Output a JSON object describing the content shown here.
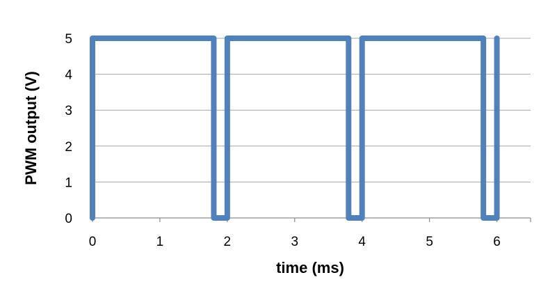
{
  "chart_data": {
    "type": "line",
    "title": "",
    "xlabel": "time (ms)",
    "ylabel": "PWM output (V)",
    "xlim": [
      0,
      6.5
    ],
    "ylim": [
      0,
      5
    ],
    "x_ticks": [
      0,
      1,
      2,
      3,
      4,
      5,
      6
    ],
    "y_ticks": [
      0,
      1,
      2,
      3,
      4,
      5
    ],
    "grid": "horizontal",
    "legend": "none",
    "series": [
      {
        "color": "#4f81bd",
        "x": [
          0,
          0,
          1.8,
          1.8,
          2.0,
          2.0,
          3.8,
          3.8,
          4.0,
          4.0,
          5.8,
          5.8,
          6.0,
          6.0
        ],
        "y": [
          0,
          5,
          5,
          0,
          0,
          5,
          5,
          0,
          0,
          5,
          5,
          0,
          0,
          5
        ]
      }
    ]
  }
}
